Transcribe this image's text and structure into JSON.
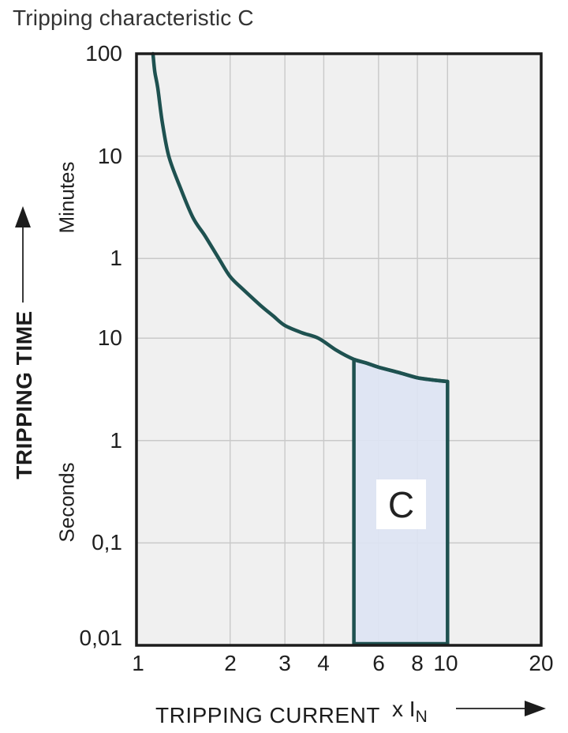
{
  "title": "Tripping characteristic C",
  "chart_data": {
    "type": "line",
    "title": "Tripping characteristic C",
    "x_axis": {
      "label": "TRIPPING CURRENT",
      "unit_prefix": "x I",
      "unit_sub": "N",
      "scale": "log",
      "range": [
        1,
        20
      ],
      "tick_values": [
        1,
        2,
        3,
        4,
        6,
        8,
        10,
        20
      ],
      "ticks": [
        "1",
        "2",
        "3",
        "4",
        "6",
        "8",
        "10",
        "20"
      ],
      "gridlines": [
        2,
        3,
        4,
        6,
        8,
        10
      ]
    },
    "y_axis": {
      "label": "TRIPPING TIME",
      "scale": "log",
      "range_seconds": [
        0.01,
        6000
      ],
      "upper_unit": "Minutes",
      "lower_unit": "Seconds",
      "ticks": [
        {
          "seconds": 6000,
          "label": "100"
        },
        {
          "seconds": 600,
          "label": "10"
        },
        {
          "seconds": 60,
          "label": "1"
        },
        {
          "seconds": 10,
          "label": "10"
        },
        {
          "seconds": 1,
          "label": "1"
        },
        {
          "seconds": 0.1,
          "label": "0,1"
        },
        {
          "seconds": 0.01,
          "label": "0,01"
        }
      ],
      "gridlines_seconds": [
        600,
        60,
        10,
        1,
        0.1
      ]
    },
    "series": [
      {
        "name": "C tripping characteristic curve",
        "points": [
          [
            1.13,
            6000
          ],
          [
            1.145,
            4000
          ],
          [
            1.17,
            2800
          ],
          [
            1.21,
            1300
          ],
          [
            1.27,
            600
          ],
          [
            1.38,
            300
          ],
          [
            1.52,
            150
          ],
          [
            1.66,
            100
          ],
          [
            1.84,
            60
          ],
          [
            2.0,
            40
          ],
          [
            2.2,
            30
          ],
          [
            2.5,
            21
          ],
          [
            2.75,
            16.5
          ],
          [
            3.0,
            13.3
          ],
          [
            3.4,
            11.3
          ],
          [
            3.84,
            10
          ],
          [
            4.4,
            7.6
          ],
          [
            5.0,
            6.2
          ],
          [
            5.5,
            5.7
          ],
          [
            6.0,
            5.2
          ],
          [
            7.0,
            4.6
          ],
          [
            8.0,
            4.1
          ],
          [
            9.0,
            3.9
          ],
          [
            10.0,
            3.77
          ]
        ]
      }
    ],
    "band": {
      "label": "C",
      "x_from": 5,
      "x_to": 10,
      "bottom_seconds": 0.01
    },
    "colors": {
      "curve": "#1e5150",
      "band_fill": "#dde4f3",
      "plot_bg": "#f0f0f0",
      "grid": "#c9c9c9",
      "border": "#1c1c1c",
      "text": "#2b2b2b"
    },
    "legend": null
  }
}
